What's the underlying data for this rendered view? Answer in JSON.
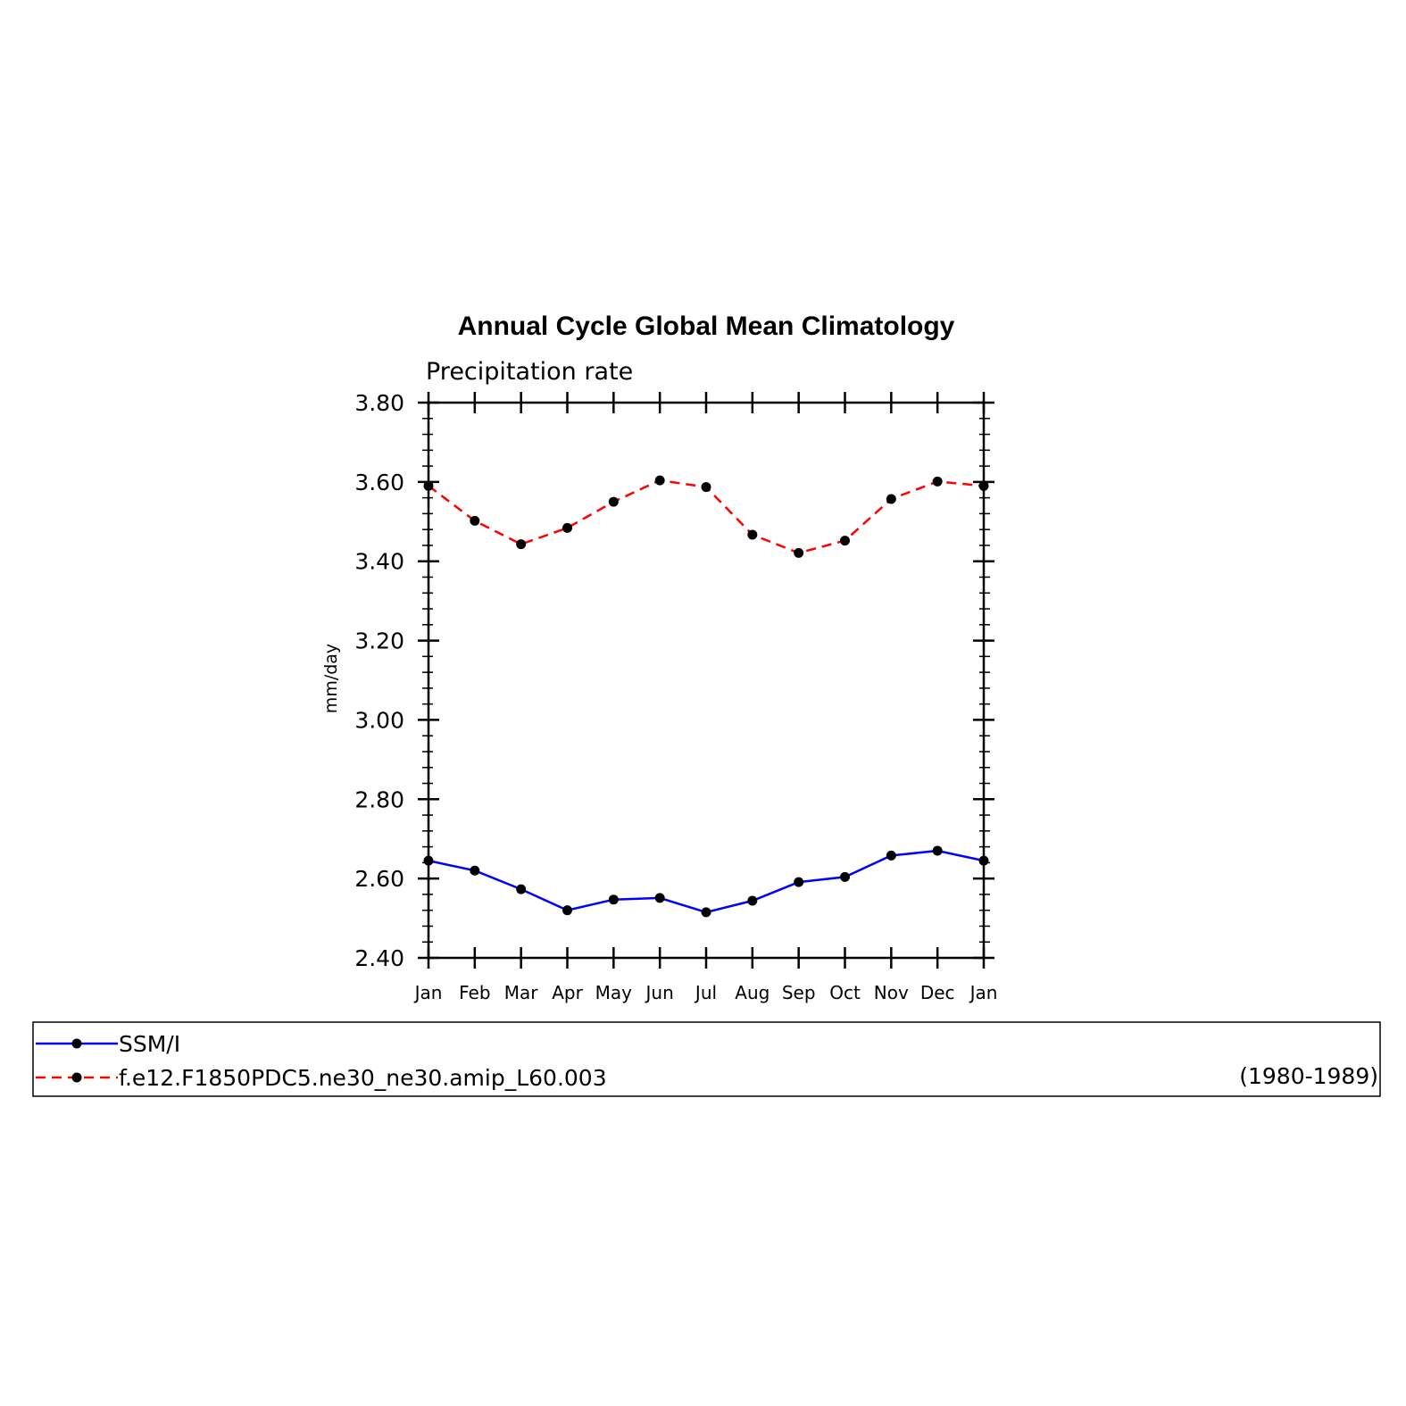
{
  "chart_data": {
    "type": "line",
    "title": "Annual Cycle Global Mean Climatology",
    "subtitle": "Precipitation rate",
    "ylabel": "mm/day",
    "xlabel": "",
    "x": [
      "Jan",
      "Feb",
      "Mar",
      "Apr",
      "May",
      "Jun",
      "Jul",
      "Aug",
      "Sep",
      "Oct",
      "Nov",
      "Dec",
      "Jan"
    ],
    "ylim": [
      2.4,
      3.8
    ],
    "yticks": [
      "2.40",
      "2.60",
      "2.80",
      "3.00",
      "3.20",
      "3.40",
      "3.60",
      "3.80"
    ],
    "grid": false,
    "legend_position": "bottom",
    "legend_note": "(1980-1989)",
    "series": [
      {
        "name": "SSM/I",
        "color": "#0000ff",
        "dash": "solid",
        "marker": "filled-circle",
        "values": [
          2.645,
          2.62,
          2.573,
          2.52,
          2.547,
          2.551,
          2.515,
          2.544,
          2.591,
          2.604,
          2.658,
          2.67,
          2.645
        ]
      },
      {
        "name": "f.e12.F1850PDC5.ne30_ne30.amip_L60.003",
        "color": "#ff0000",
        "dash": "dashed",
        "marker": "filled-circle",
        "values": [
          3.59,
          3.502,
          3.443,
          3.484,
          3.55,
          3.604,
          3.587,
          3.467,
          3.421,
          3.452,
          3.557,
          3.601,
          3.59
        ]
      }
    ]
  }
}
